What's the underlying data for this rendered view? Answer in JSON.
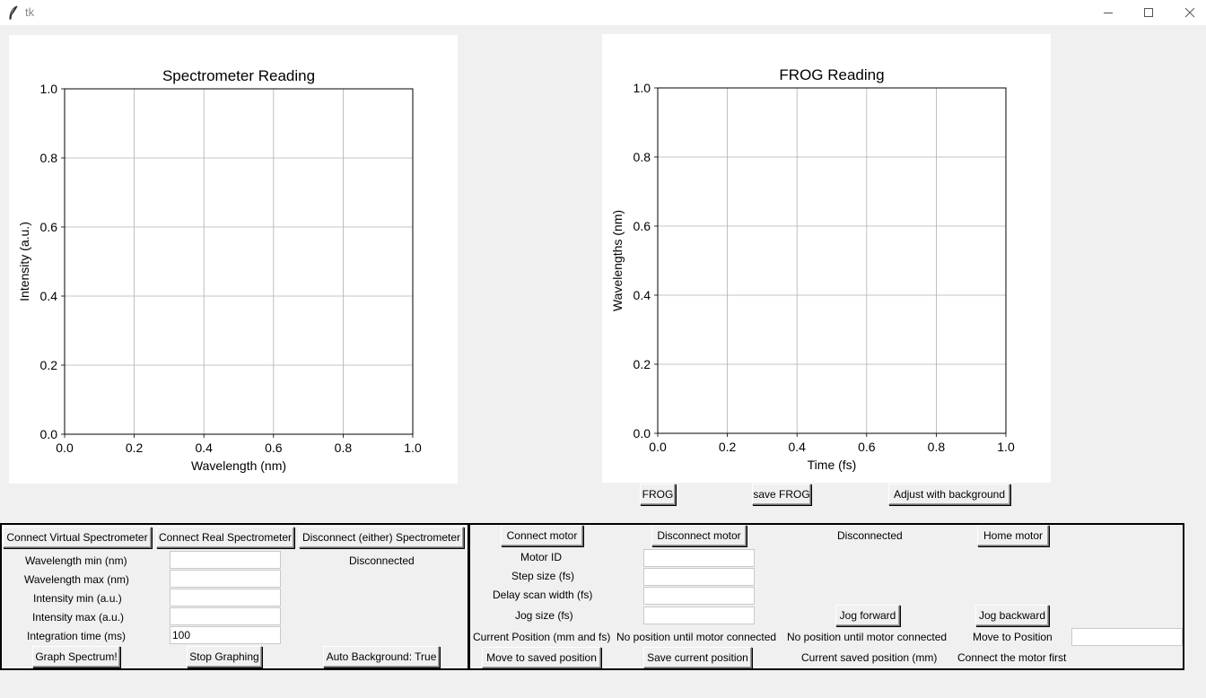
{
  "window": {
    "title": "tk"
  },
  "spectrometer_plot": {
    "chart_data": {
      "type": "line",
      "title": "Spectrometer Reading",
      "xlabel": "Wavelength (nm)",
      "ylabel": "Intensity (a.u.)",
      "xlim": [
        0,
        1
      ],
      "ylim": [
        0,
        1
      ],
      "xticks": [
        "0.0",
        "0.2",
        "0.4",
        "0.6",
        "0.8",
        "1.0"
      ],
      "yticks": [
        "0.0",
        "0.2",
        "0.4",
        "0.6",
        "0.8",
        "1.0"
      ],
      "grid": true,
      "series": []
    }
  },
  "frog_plot": {
    "chart_data": {
      "type": "line",
      "title": "FROG Reading",
      "xlabel": "Time (fs)",
      "ylabel": "Wavelengths (nm)",
      "xlim": [
        0,
        1
      ],
      "ylim": [
        0,
        1
      ],
      "xticks": [
        "0.0",
        "0.2",
        "0.4",
        "0.6",
        "0.8",
        "1.0"
      ],
      "yticks": [
        "0.0",
        "0.2",
        "0.4",
        "0.6",
        "0.8",
        "1.0"
      ],
      "grid": true,
      "series": []
    }
  },
  "frog_controls": {
    "frog_label": "FROG",
    "save_label": "save FROG",
    "adjust_label": "Adjust with background"
  },
  "spectrometer": {
    "connect_virtual": "Connect Virtual Spectrometer",
    "connect_real": "Connect Real Spectrometer",
    "disconnect": "Disconnect (either) Spectrometer",
    "status": "Disconnected",
    "wl_min_label": "Wavelength min (nm)",
    "wl_max_label": "Wavelength max (nm)",
    "int_min_label": "Intensity min (a.u.)",
    "int_max_label": "Intensity max (a.u.)",
    "integration_label": "Integration time (ms)",
    "wl_min_value": "",
    "wl_max_value": "",
    "int_min_value": "",
    "int_max_value": "",
    "integration_value": "100",
    "graph_label": "Graph Spectrum!",
    "stop_label": "Stop Graphing",
    "auto_bg_label": "Auto Background: True"
  },
  "motor": {
    "connect": "Connect motor",
    "disconnect": "Disconnect motor",
    "status": "Disconnected",
    "home": "Home motor",
    "motor_id_label": "Motor ID",
    "step_size_label": "Step size (fs)",
    "delay_width_label": "Delay scan width (fs)",
    "jog_size_label": "Jog size (fs)",
    "motor_id_value": "",
    "step_size_value": "",
    "delay_width_value": "",
    "jog_size_value": "",
    "jog_forward": "Jog forward",
    "jog_backward": "Jog backward",
    "current_pos_label": "Current Position (mm and fs)",
    "pos_mm": "No position until motor connected",
    "pos_fs": "No position until motor connected",
    "move_to_label": "Move to Position",
    "move_to_value": "",
    "move_saved": "Move to saved position",
    "save_current": "Save current position",
    "saved_pos_label": "Current saved position (mm)",
    "saved_pos_value": "Connect the motor first"
  }
}
